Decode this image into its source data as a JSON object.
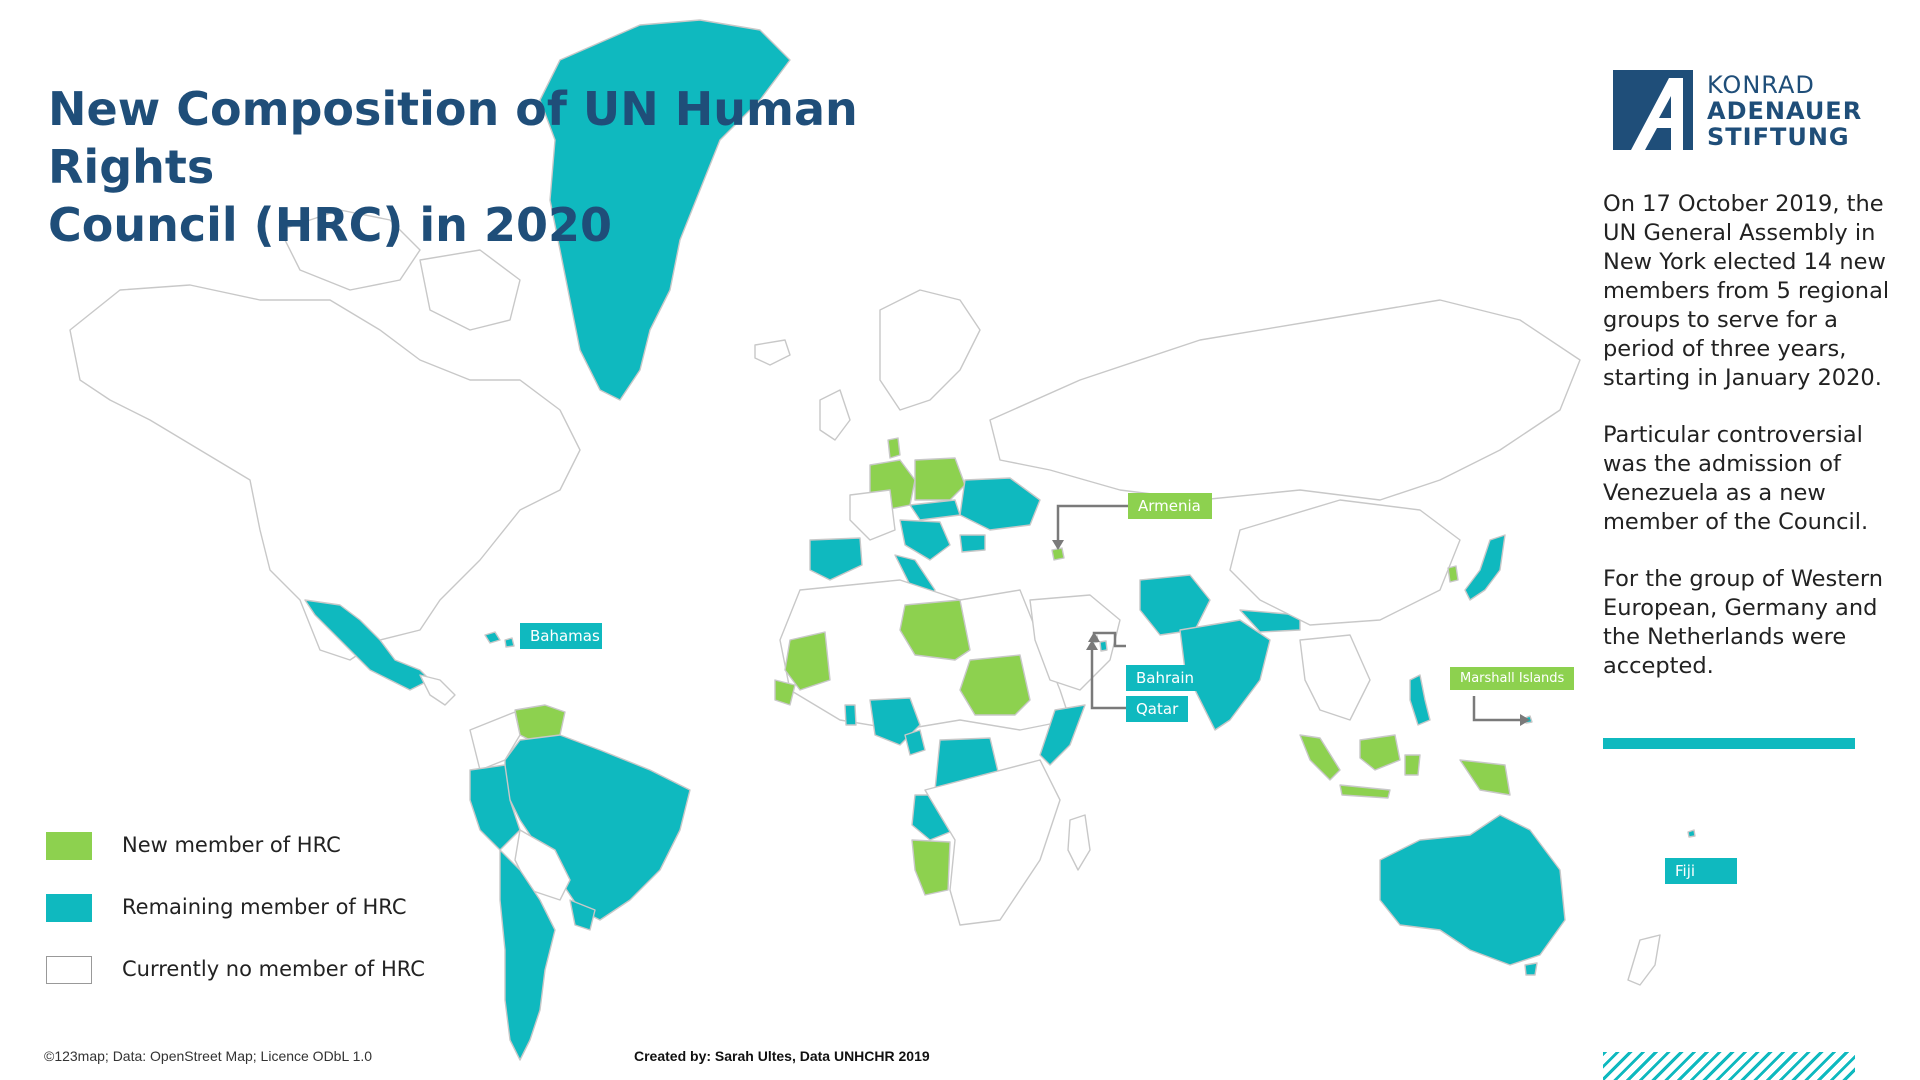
{
  "title": {
    "line1": "New Composition of UN Human Rights",
    "line2": "Council (HRC) in 2020"
  },
  "logo": {
    "line1": "KONRAD",
    "line2": "ADENAUER",
    "line3": "STIFTUNG"
  },
  "description": [
    "On 17 October 2019, the UN General Assembly in New York elected 14 new members from 5 regional groups to serve for a period of three years, starting in January 2020.",
    "Particular controversial was the admission of Venezuela as a new member of the Council.",
    "For the group of Western European, Germany and the Netherlands were accepted."
  ],
  "legend": [
    {
      "label": "New member of HRC",
      "color": "#8dd14f"
    },
    {
      "label": "Remaining member of HRC",
      "color": "#0fb9bf"
    },
    {
      "label": "Currently no member of HRC",
      "color": "#ffffff"
    }
  ],
  "colors": {
    "new_member": "#8dd14f",
    "remaining_member": "#0fb9bf",
    "non_member": "#ffffff",
    "border": "#c8c8c8",
    "title": "#1f4e79",
    "arrow": "#7a7a7a"
  },
  "callouts": {
    "armenia": "Armenia",
    "bahamas": "Bahamas",
    "bahrain": "Bahrain",
    "qatar": "Qatar",
    "marshall_islands": "Marshall Islands",
    "fiji": "Fiji"
  },
  "credits": {
    "map_source": "©123map; Data: OpenStreet Map; Licence ODbL 1.0",
    "created_by": "Created by: Sarah Ultes, Data UNHCHR 2019"
  }
}
